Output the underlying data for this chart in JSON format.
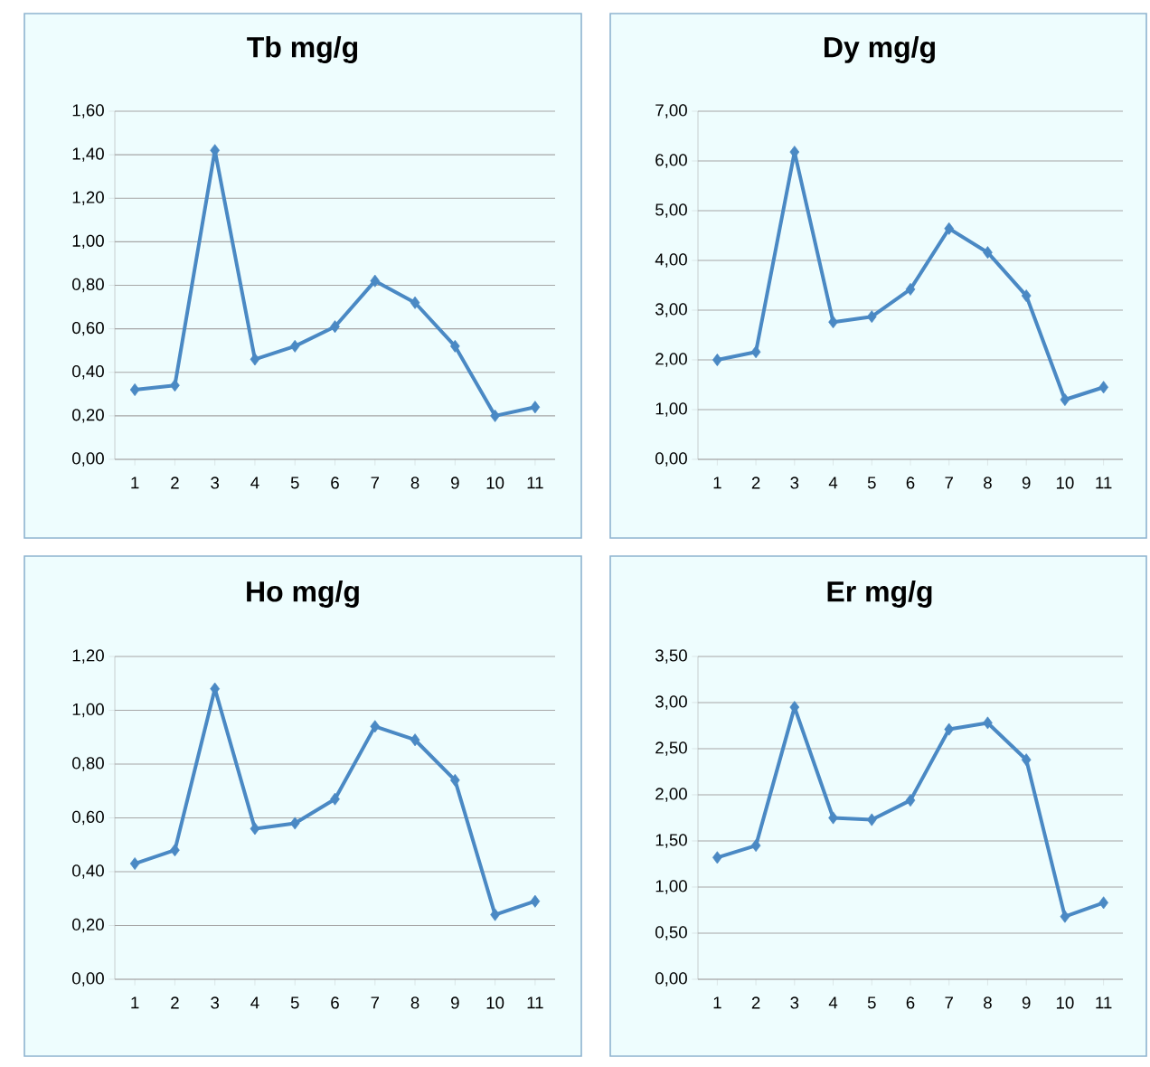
{
  "chart_data": [
    {
      "type": "line",
      "title": "Tb mg/g",
      "categories": [
        "1",
        "2",
        "3",
        "4",
        "5",
        "6",
        "7",
        "8",
        "9",
        "10",
        "11"
      ],
      "values": [
        0.32,
        0.34,
        1.42,
        0.46,
        0.52,
        0.61,
        0.82,
        0.72,
        0.52,
        0.2,
        0.24
      ],
      "color": "#4a89c4",
      "marker": "diamond",
      "grid": "y",
      "ylim": [
        0,
        1.6
      ],
      "yticks": [
        {
          "value": 0,
          "label": "0,00"
        },
        {
          "value": 0.2,
          "label": "0,20"
        },
        {
          "value": 0.4,
          "label": "0,40"
        },
        {
          "value": 0.6,
          "label": "0,60"
        },
        {
          "value": 0.8,
          "label": "0,80"
        },
        {
          "value": 1.0,
          "label": "1,00"
        },
        {
          "value": 1.2,
          "label": "1,20"
        },
        {
          "value": 1.4,
          "label": "1,40"
        },
        {
          "value": 1.6,
          "label": "1,60"
        }
      ]
    },
    {
      "type": "line",
      "title": "Dy mg/g",
      "categories": [
        "1",
        "2",
        "3",
        "4",
        "5",
        "6",
        "7",
        "8",
        "9",
        "10",
        "11"
      ],
      "values": [
        2.0,
        2.16,
        6.18,
        2.76,
        2.87,
        3.42,
        4.64,
        4.16,
        3.29,
        1.2,
        1.45
      ],
      "color": "#4a89c4",
      "marker": "diamond",
      "grid": "y",
      "ylim": [
        0,
        7
      ],
      "yticks": [
        {
          "value": 0,
          "label": "0,00"
        },
        {
          "value": 1,
          "label": "1,00"
        },
        {
          "value": 2,
          "label": "2,00"
        },
        {
          "value": 3,
          "label": "3,00"
        },
        {
          "value": 4,
          "label": "4,00"
        },
        {
          "value": 5,
          "label": "5,00"
        },
        {
          "value": 6,
          "label": "6,00"
        },
        {
          "value": 7,
          "label": "7,00"
        }
      ]
    },
    {
      "type": "line",
      "title": "Ho mg/g",
      "categories": [
        "1",
        "2",
        "3",
        "4",
        "5",
        "6",
        "7",
        "8",
        "9",
        "10",
        "11"
      ],
      "values": [
        0.43,
        0.48,
        1.08,
        0.56,
        0.58,
        0.67,
        0.94,
        0.89,
        0.74,
        0.24,
        0.29
      ],
      "color": "#4a89c4",
      "marker": "diamond",
      "grid": "y",
      "ylim": [
        0,
        1.2
      ],
      "yticks": [
        {
          "value": 0,
          "label": "0,00"
        },
        {
          "value": 0.2,
          "label": "0,20"
        },
        {
          "value": 0.4,
          "label": "0,40"
        },
        {
          "value": 0.6,
          "label": "0,60"
        },
        {
          "value": 0.8,
          "label": "0,80"
        },
        {
          "value": 1.0,
          "label": "1,00"
        },
        {
          "value": 1.2,
          "label": "1,20"
        }
      ]
    },
    {
      "type": "line",
      "title": "Er mg/g",
      "categories": [
        "1",
        "2",
        "3",
        "4",
        "5",
        "6",
        "7",
        "8",
        "9",
        "10",
        "11"
      ],
      "values": [
        1.32,
        1.45,
        2.95,
        1.75,
        1.73,
        1.94,
        2.71,
        2.78,
        2.38,
        0.68,
        0.83
      ],
      "color": "#4a89c4",
      "marker": "diamond",
      "grid": "y",
      "ylim": [
        0,
        3.5
      ],
      "yticks": [
        {
          "value": 0,
          "label": "0,00"
        },
        {
          "value": 0.5,
          "label": "0,50"
        },
        {
          "value": 1.0,
          "label": "1,00"
        },
        {
          "value": 1.5,
          "label": "1,50"
        },
        {
          "value": 2.0,
          "label": "2,00"
        },
        {
          "value": 2.5,
          "label": "2,50"
        },
        {
          "value": 3.0,
          "label": "3,00"
        },
        {
          "value": 3.5,
          "label": "3,50"
        }
      ]
    }
  ]
}
